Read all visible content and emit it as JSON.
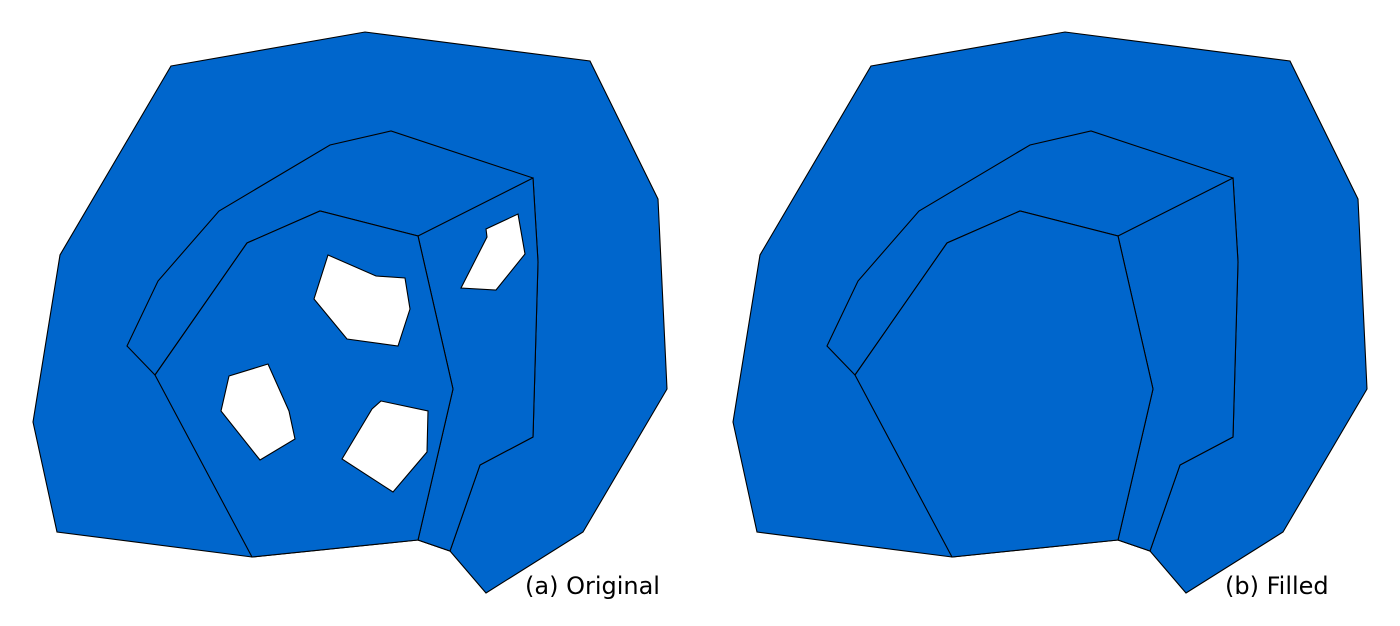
{
  "panels": {
    "original": {
      "caption": "(a) Original",
      "has_holes": true
    },
    "filled": {
      "caption": "(b) Filled",
      "has_holes": false
    }
  },
  "colors": {
    "fill": "#0066cc",
    "hole": "#ffffff",
    "stroke": "#000000"
  }
}
